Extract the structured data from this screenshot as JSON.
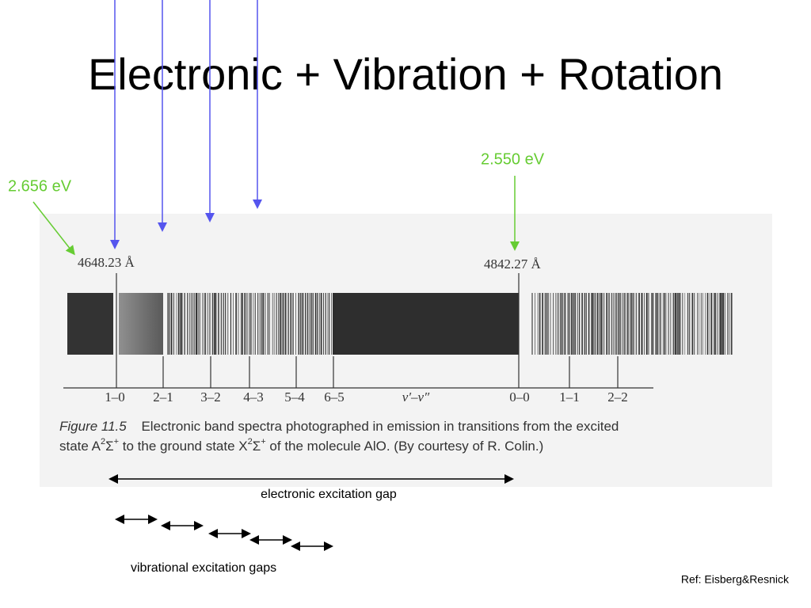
{
  "header": {
    "title": "Electronic + Vibration + Rotation"
  },
  "callouts": {
    "left_energy": "2.656 eV",
    "right_energy": "2.550 eV"
  },
  "figure": {
    "left_wavelength": "4648.23 Å",
    "right_wavelength": "4842.27 Å",
    "transitions": [
      "1–0",
      "2–1",
      "3–2",
      "4–3",
      "5–4",
      "6–5",
      "v′–v″",
      "0–0",
      "1–1",
      "2–2"
    ],
    "caption": {
      "label": "Figure 11.5",
      "line1": "Electronic band spectra photographed in emission in transitions from the excited",
      "line2": [
        "state A",
        "2",
        "Σ",
        "+",
        " to the ground state X",
        "2",
        "Σ",
        "+",
        " of the molecule AlO. (By courtesy of R. Colin.)"
      ]
    }
  },
  "annotations": {
    "electronic_gap": "electronic excitation gap",
    "vibrational_gaps": "vibrational excitation gaps"
  },
  "footer": {
    "reference": "Ref: Eisberg&Resnick"
  }
}
